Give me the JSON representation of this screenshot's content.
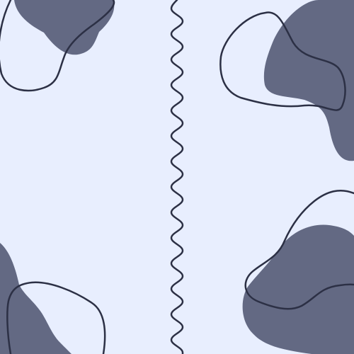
{
  "background_color": "#e8eefe",
  "blob_fill_color": "#636983",
  "outline_stroke_color": "#2c3045",
  "shapes": {
    "top_left_blob": "filled-blob",
    "top_left_outline": "outlined-blob",
    "top_right_blob": "filled-blob",
    "top_right_outline": "outlined-blob",
    "bottom_right_blob": "filled-blob",
    "bottom_right_outline": "outlined-blob",
    "bottom_left_blob": "filled-blob",
    "bottom_left_outline": "outlined-blob",
    "center_divider": "wavy-vertical-line"
  }
}
